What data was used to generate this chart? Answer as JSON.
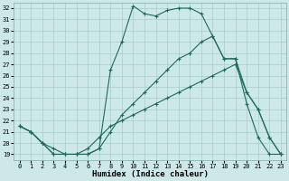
{
  "background_color": "#cde8e8",
  "grid_color": "#aacccc",
  "line_color": "#1a6b5a",
  "xlim": [
    -0.5,
    23.5
  ],
  "ylim": [
    18.5,
    32.5
  ],
  "xticks": [
    0,
    1,
    2,
    3,
    4,
    5,
    6,
    7,
    8,
    9,
    10,
    11,
    12,
    13,
    14,
    15,
    16,
    17,
    18,
    19,
    20,
    21,
    22,
    23
  ],
  "yticks": [
    19,
    20,
    21,
    22,
    23,
    24,
    25,
    26,
    27,
    28,
    29,
    30,
    31,
    32
  ],
  "xlabel": "Humidex (Indice chaleur)",
  "curve1_x": [
    0,
    1,
    2,
    3,
    4,
    5,
    6,
    7,
    8,
    9,
    10,
    11,
    12,
    13,
    14,
    15,
    16,
    17,
    18,
    19,
    20,
    21,
    22,
    23
  ],
  "curve1_y": [
    21.5,
    21.0,
    20.0,
    19.0,
    19.0,
    19.0,
    19.0,
    19.5,
    26.5,
    29.0,
    32.2,
    31.5,
    31.3,
    31.8,
    32.0,
    32.0,
    31.5,
    29.5,
    27.5,
    27.5,
    23.5,
    20.5,
    19.0,
    19.0
  ],
  "curve2_x": [
    0,
    1,
    2,
    3,
    4,
    5,
    6,
    7,
    8,
    9,
    10,
    11,
    12,
    13,
    14,
    15,
    16,
    17,
    18,
    19,
    20,
    21,
    22,
    23
  ],
  "curve2_y": [
    21.5,
    21.0,
    20.0,
    19.0,
    19.0,
    19.0,
    19.0,
    19.5,
    21.0,
    22.5,
    23.5,
    24.5,
    25.5,
    26.5,
    27.5,
    28.0,
    29.0,
    29.5,
    27.5,
    27.5,
    24.5,
    23.0,
    20.5,
    19.0
  ],
  "curve3_x": [
    0,
    1,
    2,
    3,
    4,
    5,
    6,
    7,
    8,
    9,
    10,
    11,
    12,
    13,
    14,
    15,
    16,
    17,
    18,
    19,
    20,
    21,
    22,
    23
  ],
  "curve3_y": [
    21.5,
    21.0,
    20.0,
    19.5,
    19.0,
    19.0,
    19.5,
    20.5,
    21.5,
    22.0,
    22.5,
    23.0,
    23.5,
    24.0,
    24.5,
    25.0,
    25.5,
    26.0,
    26.5,
    27.0,
    24.5,
    23.0,
    20.5,
    19.0
  ],
  "linewidth": 0.8,
  "marker": "+",
  "marker_size": 3,
  "tick_fontsize": 5,
  "label_fontsize": 6.5
}
